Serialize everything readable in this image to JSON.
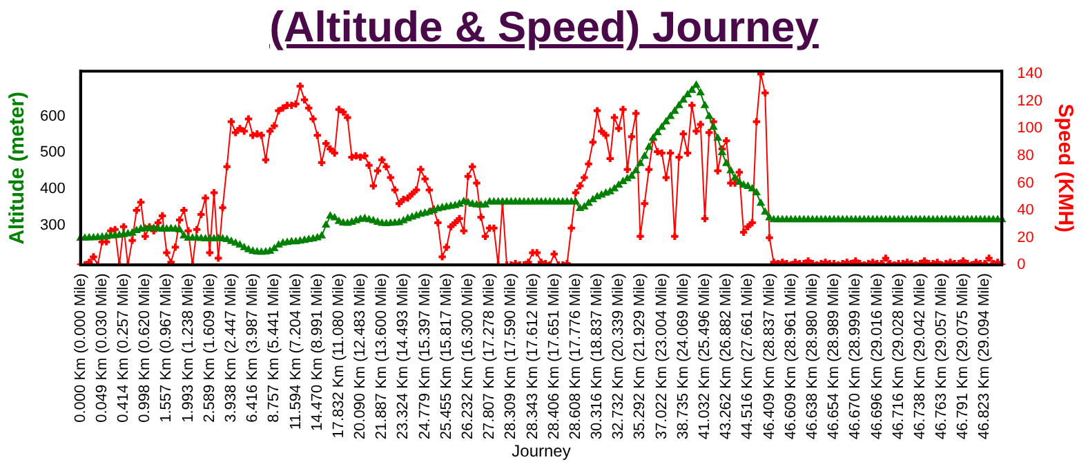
{
  "chart_data": {
    "type": "line",
    "title": "(Altitude & Speed) Journey",
    "xlabel": "Journey",
    "ylabel": "Altitude (meter)",
    "y2label": "Speed (KMH)",
    "categories": [
      "0.000 Km (0.000 Mile)",
      null,
      null,
      null,
      null,
      "0.049 Km (0.030 Mile)",
      null,
      null,
      null,
      null,
      "0.414 Km (0.257 Mile)",
      null,
      null,
      null,
      null,
      "0.998 Km (0.620 Mile)",
      null,
      null,
      null,
      null,
      "1.557 Km (0.967 Mile)",
      null,
      null,
      null,
      null,
      "1.993 Km (1.238 Mile)",
      null,
      null,
      null,
      null,
      "2.589 Km (1.609 Mile)",
      null,
      null,
      null,
      null,
      "3.938 Km (2.447 Mile)",
      null,
      null,
      null,
      null,
      "6.416 Km (3.987 Mile)",
      null,
      null,
      null,
      null,
      "8.757 Km (5.441 Mile)",
      null,
      null,
      null,
      null,
      "11.594 Km (7.204 Mile)",
      null,
      null,
      null,
      null,
      "14.470 Km (8.991 Mile)",
      null,
      null,
      null,
      null,
      "17.832 Km (11.080 Mile)",
      null,
      null,
      null,
      null,
      "20.090 Km (12.483 Mile)",
      null,
      null,
      null,
      null,
      "21.887 Km (13.600 Mile)",
      null,
      null,
      null,
      null,
      "23.324 Km (14.493 Mile)",
      null,
      null,
      null,
      null,
      "24.779 Km (15.397 Mile)",
      null,
      null,
      null,
      null,
      "25.455 Km (15.817 Mile)",
      null,
      null,
      null,
      null,
      "26.232 Km (16.300 Mile)",
      null,
      null,
      null,
      null,
      "27.807 Km (17.278 Mile)",
      null,
      null,
      null,
      null,
      "28.309 Km (17.590 Mile)",
      null,
      null,
      null,
      null,
      "28.343 Km (17.612 Mile)",
      null,
      null,
      null,
      null,
      "28.406 Km (17.651 Mile)",
      null,
      null,
      null,
      null,
      "28.608 Km (17.776 Mile)",
      null,
      null,
      null,
      null,
      "30.316 Km (18.837 Mile)",
      null,
      null,
      null,
      null,
      "32.732 Km (20.339 Mile)",
      null,
      null,
      null,
      null,
      "35.292 Km (21.929 Mile)",
      null,
      null,
      null,
      null,
      "37.022 Km (23.004 Mile)",
      null,
      null,
      null,
      null,
      "38.735 Km (24.069 Mile)",
      null,
      null,
      null,
      null,
      "41.032 Km (25.496 Mile)",
      null,
      null,
      null,
      null,
      "43.262 Km (26.882 Mile)",
      null,
      null,
      null,
      null,
      "44.516 Km (27.661 Mile)",
      null,
      null,
      null,
      null,
      "46.409 Km (28.837 Mile)",
      null,
      null,
      null,
      null,
      "46.609 Km (28.961 Mile)",
      null,
      null,
      null,
      null,
      "46.638 Km (28.980 Mile)",
      null,
      null,
      null,
      null,
      "46.654 Km (28.989 Mile)",
      null,
      null,
      null,
      null,
      "46.670 Km (28.999 Mile)",
      null,
      null,
      null,
      null,
      "46.696 Km (29.016 Mile)",
      null,
      null,
      null,
      null,
      "46.716 Km (29.028 Mile)",
      null,
      null,
      null,
      null,
      "46.738 Km (29.042 Mile)",
      null,
      null,
      null,
      null,
      "46.763 Km (29.057 Mile)",
      null,
      null,
      null,
      null,
      "46.791 Km (29.075 Mile)",
      null,
      null,
      null,
      null,
      "46.823 Km (29.094 Mile)",
      null,
      null,
      null,
      null
    ],
    "series": [
      {
        "color": "#008000",
        "marker": "triangle",
        "values": [
          264,
          264,
          265,
          265,
          266,
          267,
          268,
          270,
          271,
          272,
          274,
          276,
          278,
          285,
          289,
          290,
          290,
          291,
          290,
          289,
          289,
          290,
          289,
          287,
          270,
          264,
          264,
          264,
          263,
          262,
          262,
          262,
          263,
          262,
          260,
          255,
          250,
          245,
          238,
          232,
          228,
          226,
          225,
          226,
          228,
          235,
          245,
          250,
          252,
          254,
          254,
          256,
          258,
          260,
          262,
          265,
          270,
          300,
          325,
          320,
          310,
          306,
          305,
          308,
          312,
          316,
          318,
          315,
          312,
          308,
          305,
          304,
          305,
          306,
          307,
          312,
          318,
          322,
          326,
          330,
          333,
          336,
          340,
          345,
          348,
          350,
          352,
          354,
          358,
          365,
          362,
          358,
          356,
          355,
          356,
          364,
          364,
          364,
          364,
          364,
          364,
          364,
          364,
          364,
          364,
          364,
          364,
          364,
          364,
          364,
          364,
          364,
          364,
          364,
          364,
          364,
          346,
          350,
          360,
          370,
          378,
          383,
          388,
          392,
          400,
          410,
          420,
          428,
          435,
          450,
          470,
          490,
          515,
          540,
          555,
          570,
          585,
          600,
          614,
          630,
          645,
          660,
          672,
          686,
          665,
          630,
          600,
          570,
          540,
          500,
          470,
          450,
          430,
          418,
          410,
          407,
          400,
          389,
          360,
          336,
          320,
          315,
          315,
          315,
          315,
          315,
          315,
          315,
          315,
          315,
          315,
          315,
          315,
          315,
          315,
          315,
          315,
          315,
          315,
          315,
          315,
          315,
          315,
          315,
          315,
          315,
          315,
          315,
          315,
          315,
          315,
          315,
          315,
          315,
          315,
          315,
          315,
          315,
          315,
          315,
          315,
          315,
          315,
          315,
          315,
          315,
          315,
          315,
          315,
          315,
          315,
          315,
          315,
          315,
          315
        ]
      },
      {
        "color": "#ff0000",
        "marker": "cross",
        "axis": "y2",
        "values": [
          0,
          0,
          2,
          6,
          0,
          17,
          17,
          25,
          26,
          0,
          28,
          0,
          18,
          40,
          46,
          21,
          28,
          25,
          31,
          36,
          9,
          2,
          13,
          33,
          40,
          25,
          0,
          26,
          37,
          49,
          9,
          53,
          5,
          42,
          72,
          105,
          97,
          100,
          98,
          107,
          95,
          96,
          95,
          77,
          98,
          102,
          113,
          115,
          117,
          117,
          118,
          131,
          121,
          115,
          107,
          95,
          75,
          89,
          85,
          82,
          114,
          112,
          108,
          79,
          80,
          79,
          80,
          73,
          58,
          69,
          77,
          72,
          64,
          55,
          45,
          48,
          49,
          52,
          55,
          70,
          63,
          55,
          41,
          31,
          6,
          13,
          28,
          31,
          34,
          25,
          65,
          72,
          60,
          35,
          21,
          27,
          27,
          0,
          46,
          0,
          0,
          1,
          0,
          0,
          2,
          9,
          9,
          2,
          1,
          0,
          8,
          0,
          0,
          1,
          27,
          53,
          58,
          64,
          74,
          90,
          113,
          98,
          95,
          78,
          108,
          100,
          114,
          70,
          94,
          111,
          21,
          45,
          70,
          92,
          83,
          82,
          64,
          82,
          21,
          79,
          96,
          82,
          117,
          98,
          103,
          34,
          97,
          105,
          69,
          85,
          91,
          60,
          60,
          68,
          24,
          28,
          31,
          105,
          140,
          126,
          20,
          2,
          1,
          2,
          1,
          0,
          2,
          1,
          1,
          3,
          1,
          0,
          1,
          2,
          1,
          1,
          0,
          1,
          2,
          1,
          3,
          1,
          0,
          1,
          2,
          1,
          1,
          5,
          1,
          0,
          1,
          1,
          2,
          1,
          0,
          1,
          3,
          1,
          1,
          2,
          0,
          1,
          2,
          1,
          1,
          3,
          1,
          0,
          2,
          1,
          1,
          5,
          1,
          2,
          0
        ]
      }
    ],
    "ylim": [
      190,
      725
    ],
    "yticks": [
      300,
      400,
      500,
      600
    ],
    "y2lim": [
      0,
      142
    ],
    "y2ticks": [
      0,
      20,
      40,
      60,
      80,
      100,
      120,
      140
    ],
    "grid": false,
    "legend": false
  }
}
